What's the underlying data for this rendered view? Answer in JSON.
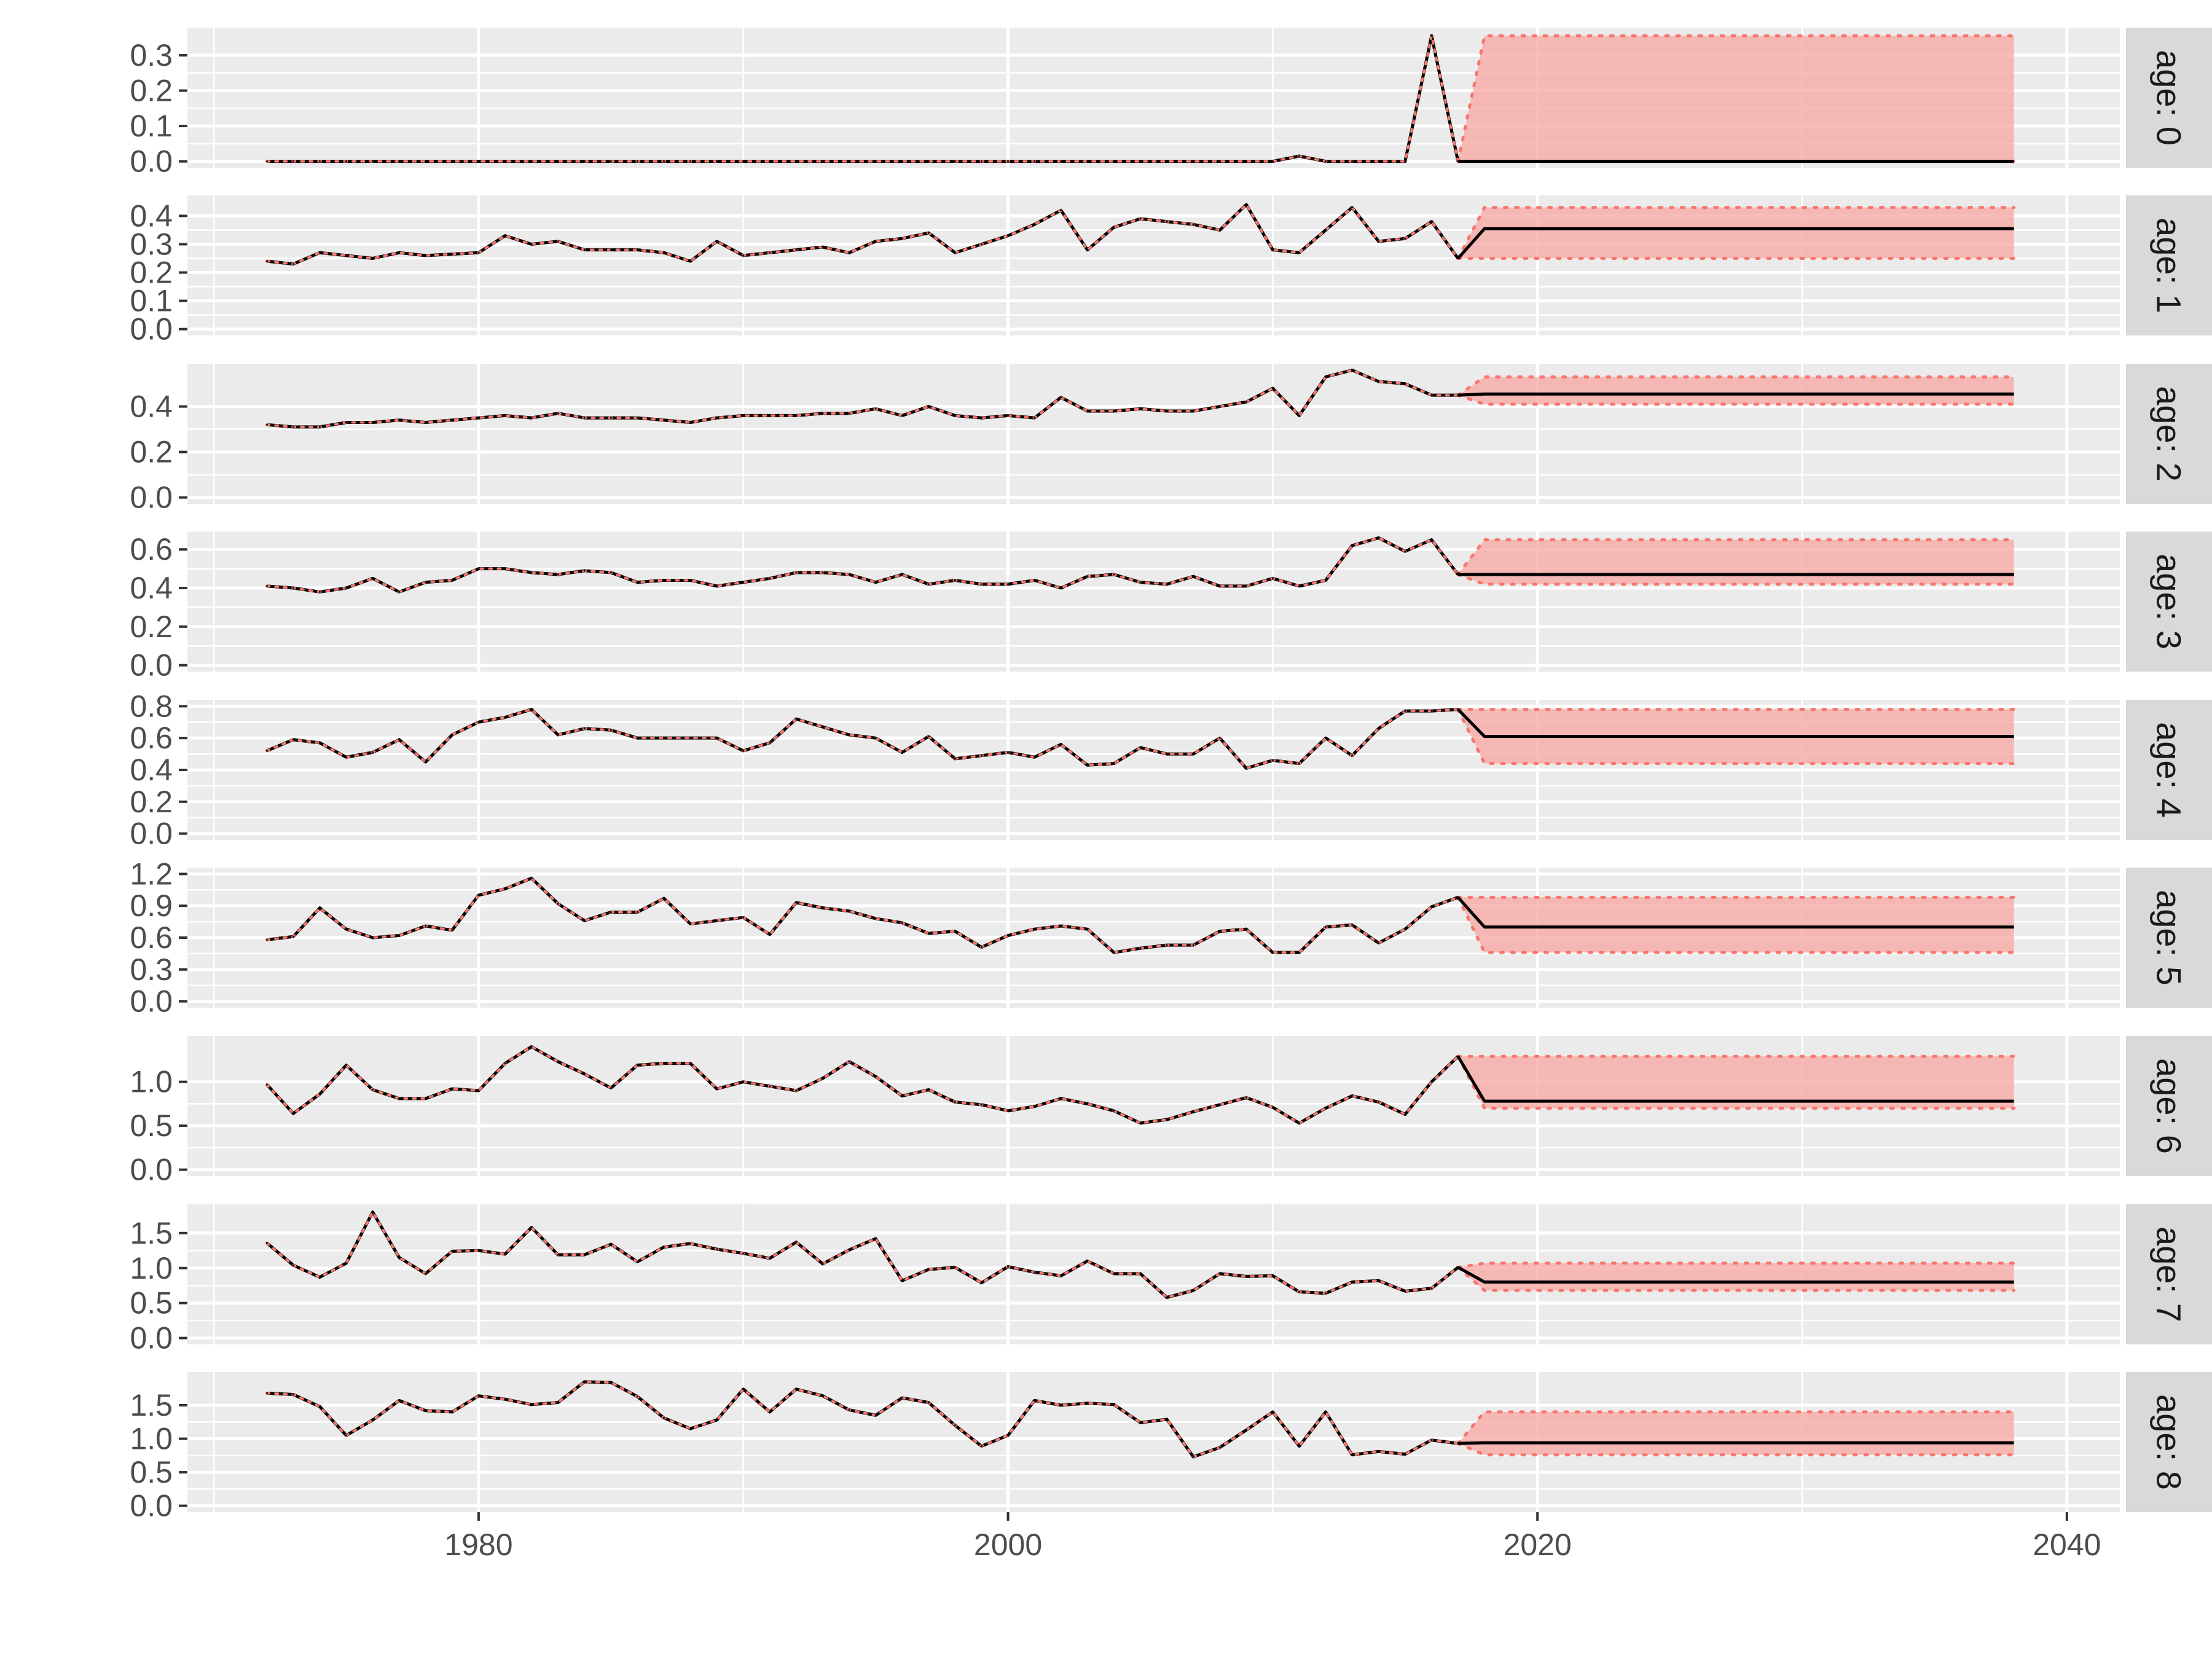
{
  "chart_data": {
    "type": "line",
    "x_axis": {
      "range": [
        1969,
        2042
      ],
      "ticks": [
        1980,
        2000,
        2020,
        2040
      ],
      "tick_labels": [
        "1980",
        "2000",
        "2020",
        "2040"
      ]
    },
    "projection": {
      "start_year": 2018,
      "end_year": 2038
    },
    "colors": {
      "panel_bg": "#ebebeb",
      "grid": "#ffffff",
      "strip_bg": "#d9d9d9",
      "line": "#000000",
      "dotted": "#f8766d",
      "ribbon": "#f8a5a0"
    },
    "x": [
      1972,
      1973,
      1974,
      1975,
      1976,
      1977,
      1978,
      1979,
      1980,
      1981,
      1982,
      1983,
      1984,
      1985,
      1986,
      1987,
      1988,
      1989,
      1990,
      1991,
      1992,
      1993,
      1994,
      1995,
      1996,
      1997,
      1998,
      1999,
      2000,
      2001,
      2002,
      2003,
      2004,
      2005,
      2006,
      2007,
      2008,
      2009,
      2010,
      2011,
      2012,
      2013,
      2014,
      2015,
      2016,
      2017
    ],
    "panels": [
      {
        "strip": "age: 0",
        "ylim": [
          0,
          0.36
        ],
        "yticks": [
          0.0,
          0.1,
          0.2,
          0.3
        ],
        "ytick_labels": [
          "0.0",
          "0.1",
          "0.2",
          "0.3"
        ],
        "values": [
          0,
          0,
          0,
          0,
          0,
          0,
          0,
          0,
          0,
          0,
          0,
          0,
          0,
          0,
          0,
          0,
          0,
          0,
          0,
          0,
          0,
          0,
          0,
          0,
          0,
          0,
          0,
          0,
          0,
          0,
          0,
          0,
          0,
          0,
          0,
          0,
          0,
          0,
          0,
          0.015,
          0,
          0,
          0,
          0,
          0.355,
          0
        ],
        "proj_mean": 0,
        "proj_lower": 0,
        "proj_upper": 0.355
      },
      {
        "strip": "age: 1",
        "ylim": [
          0,
          0.45
        ],
        "yticks": [
          0.0,
          0.1,
          0.2,
          0.3,
          0.4
        ],
        "ytick_labels": [
          "0.0",
          "0.1",
          "0.2",
          "0.3",
          "0.4"
        ],
        "values": [
          0.24,
          0.23,
          0.27,
          0.26,
          0.25,
          0.27,
          0.26,
          0.265,
          0.27,
          0.33,
          0.3,
          0.31,
          0.28,
          0.28,
          0.28,
          0.27,
          0.24,
          0.31,
          0.26,
          0.27,
          0.28,
          0.29,
          0.27,
          0.31,
          0.32,
          0.34,
          0.27,
          0.3,
          0.33,
          0.37,
          0.42,
          0.28,
          0.36,
          0.39,
          0.38,
          0.37,
          0.35,
          0.44,
          0.28,
          0.27,
          0.35,
          0.43,
          0.31,
          0.32,
          0.38,
          0.25
        ],
        "proj_mean": 0.355,
        "proj_lower": 0.25,
        "proj_upper": 0.43
      },
      {
        "strip": "age: 2",
        "ylim": [
          0,
          0.56
        ],
        "yticks": [
          0.0,
          0.2,
          0.4
        ],
        "ytick_labels": [
          "0.0",
          "0.2",
          "0.4"
        ],
        "values": [
          0.32,
          0.31,
          0.31,
          0.33,
          0.33,
          0.34,
          0.33,
          0.34,
          0.35,
          0.36,
          0.35,
          0.37,
          0.35,
          0.35,
          0.35,
          0.34,
          0.33,
          0.35,
          0.36,
          0.36,
          0.36,
          0.37,
          0.37,
          0.39,
          0.36,
          0.4,
          0.36,
          0.35,
          0.36,
          0.35,
          0.44,
          0.38,
          0.38,
          0.39,
          0.38,
          0.38,
          0.4,
          0.42,
          0.48,
          0.36,
          0.53,
          0.56,
          0.51,
          0.5,
          0.45,
          0.45
        ],
        "proj_mean": 0.455,
        "proj_lower": 0.41,
        "proj_upper": 0.53
      },
      {
        "strip": "age: 3",
        "ylim": [
          0,
          0.66
        ],
        "yticks": [
          0.0,
          0.2,
          0.4,
          0.6
        ],
        "ytick_labels": [
          "0.0",
          "0.2",
          "0.4",
          "0.6"
        ],
        "values": [
          0.41,
          0.4,
          0.38,
          0.4,
          0.45,
          0.38,
          0.43,
          0.44,
          0.5,
          0.5,
          0.48,
          0.47,
          0.49,
          0.48,
          0.43,
          0.44,
          0.44,
          0.41,
          0.43,
          0.45,
          0.48,
          0.48,
          0.47,
          0.43,
          0.47,
          0.42,
          0.44,
          0.42,
          0.42,
          0.44,
          0.4,
          0.46,
          0.47,
          0.43,
          0.42,
          0.46,
          0.41,
          0.41,
          0.45,
          0.41,
          0.44,
          0.62,
          0.66,
          0.59,
          0.65,
          0.47
        ],
        "proj_mean": 0.47,
        "proj_lower": 0.42,
        "proj_upper": 0.65
      },
      {
        "strip": "age: 4",
        "ylim": [
          0,
          0.8
        ],
        "yticks": [
          0.0,
          0.2,
          0.4,
          0.6,
          0.8
        ],
        "ytick_labels": [
          "0.0",
          "0.2",
          "0.4",
          "0.6",
          "0.8"
        ],
        "values": [
          0.52,
          0.59,
          0.57,
          0.48,
          0.51,
          0.59,
          0.45,
          0.62,
          0.7,
          0.73,
          0.78,
          0.62,
          0.66,
          0.65,
          0.6,
          0.6,
          0.6,
          0.6,
          0.52,
          0.57,
          0.72,
          0.67,
          0.62,
          0.6,
          0.51,
          0.61,
          0.47,
          0.49,
          0.51,
          0.48,
          0.56,
          0.43,
          0.44,
          0.54,
          0.5,
          0.5,
          0.6,
          0.41,
          0.46,
          0.44,
          0.6,
          0.49,
          0.66,
          0.77,
          0.77,
          0.78
        ],
        "proj_mean": 0.61,
        "proj_lower": 0.44,
        "proj_upper": 0.78
      },
      {
        "strip": "age: 5",
        "ylim": [
          0,
          1.2
        ],
        "yticks": [
          0.0,
          0.3,
          0.6,
          0.9,
          1.2
        ],
        "ytick_labels": [
          "0.0",
          "0.3",
          "0.6",
          "0.9",
          "1.2"
        ],
        "values": [
          0.58,
          0.61,
          0.88,
          0.68,
          0.6,
          0.62,
          0.71,
          0.67,
          1.0,
          1.06,
          1.16,
          0.92,
          0.76,
          0.84,
          0.84,
          0.97,
          0.73,
          0.76,
          0.79,
          0.63,
          0.93,
          0.88,
          0.85,
          0.78,
          0.74,
          0.64,
          0.66,
          0.51,
          0.62,
          0.68,
          0.71,
          0.68,
          0.46,
          0.5,
          0.53,
          0.53,
          0.66,
          0.68,
          0.46,
          0.46,
          0.7,
          0.72,
          0.55,
          0.68,
          0.89,
          0.98
        ],
        "proj_mean": 0.7,
        "proj_lower": 0.46,
        "proj_upper": 0.98
      },
      {
        "strip": "age: 6",
        "ylim": [
          0,
          1.45
        ],
        "yticks": [
          0.0,
          0.5,
          1.0
        ],
        "ytick_labels": [
          "0.0",
          "0.5",
          "1.0"
        ],
        "values": [
          0.97,
          0.64,
          0.86,
          1.19,
          0.91,
          0.81,
          0.81,
          0.92,
          0.9,
          1.21,
          1.4,
          1.23,
          1.09,
          0.93,
          1.19,
          1.21,
          1.21,
          0.92,
          1.0,
          0.95,
          0.9,
          1.04,
          1.23,
          1.06,
          0.84,
          0.91,
          0.77,
          0.74,
          0.67,
          0.72,
          0.81,
          0.75,
          0.67,
          0.53,
          0.57,
          0.66,
          0.74,
          0.82,
          0.71,
          0.53,
          0.7,
          0.84,
          0.77,
          0.63,
          1.0,
          1.29
        ],
        "proj_mean": 0.78,
        "proj_lower": 0.7,
        "proj_upper": 1.29
      },
      {
        "strip": "age: 7",
        "ylim": [
          0,
          1.82
        ],
        "yticks": [
          0.0,
          0.5,
          1.0,
          1.5
        ],
        "ytick_labels": [
          "0.0",
          "0.5",
          "1.0",
          "1.5"
        ],
        "values": [
          1.36,
          1.04,
          0.87,
          1.07,
          1.8,
          1.15,
          0.92,
          1.24,
          1.25,
          1.2,
          1.58,
          1.19,
          1.19,
          1.34,
          1.09,
          1.3,
          1.35,
          1.27,
          1.21,
          1.14,
          1.37,
          1.06,
          1.26,
          1.42,
          0.82,
          0.98,
          1.01,
          0.79,
          1.02,
          0.94,
          0.89,
          1.1,
          0.92,
          0.92,
          0.58,
          0.68,
          0.92,
          0.88,
          0.89,
          0.66,
          0.64,
          0.8,
          0.82,
          0.67,
          0.71,
          1.01
        ],
        "proj_mean": 0.8,
        "proj_lower": 0.68,
        "proj_upper": 1.07
      },
      {
        "strip": "age: 8",
        "ylim": [
          0,
          1.9
        ],
        "yticks": [
          0.0,
          0.5,
          1.0,
          1.5
        ],
        "ytick_labels": [
          "0.0",
          "0.5",
          "1.0",
          "1.5"
        ],
        "values": [
          1.68,
          1.66,
          1.48,
          1.05,
          1.28,
          1.57,
          1.42,
          1.4,
          1.64,
          1.59,
          1.51,
          1.54,
          1.85,
          1.84,
          1.63,
          1.31,
          1.15,
          1.28,
          1.74,
          1.4,
          1.74,
          1.64,
          1.43,
          1.35,
          1.61,
          1.54,
          1.2,
          0.89,
          1.05,
          1.57,
          1.5,
          1.53,
          1.51,
          1.24,
          1.29,
          0.73,
          0.87,
          1.13,
          1.4,
          0.89,
          1.4,
          0.76,
          0.81,
          0.77,
          0.98,
          0.93
        ],
        "proj_mean": 0.94,
        "proj_lower": 0.76,
        "proj_upper": 1.4
      }
    ]
  }
}
